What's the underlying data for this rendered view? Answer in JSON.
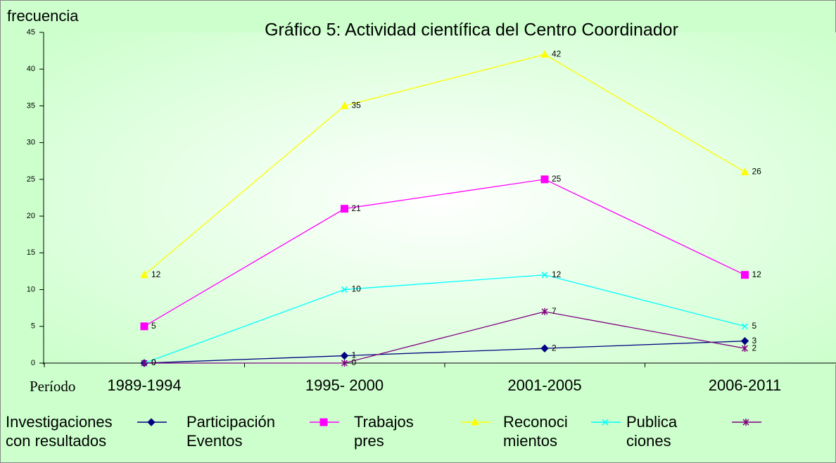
{
  "chart_data": {
    "type": "line",
    "title": "Gráfico 5: Actividad científica del Centro Coordinador",
    "y_label": "frecuencia",
    "x_label": "Período",
    "categories": [
      "1989-1994",
      "1995- 2000",
      "2001-2005",
      "2006-2011"
    ],
    "ylim": [
      0,
      45
    ],
    "yticks": [
      0,
      5,
      10,
      15,
      20,
      25,
      30,
      35,
      40,
      45
    ],
    "series": [
      {
        "name": "Investigaciones\ncon resultados",
        "color": "#000080",
        "marker": "diamond",
        "values": [
          0,
          1,
          2,
          3
        ]
      },
      {
        "name": "Participación\n Eventos",
        "color": "#ff00ff",
        "marker": "square",
        "values": [
          5,
          21,
          25,
          12
        ]
      },
      {
        "name": "Trabajos\n pres",
        "color": "#ffff00",
        "marker": "triangle",
        "values": [
          12,
          35,
          42,
          26
        ]
      },
      {
        "name": "Reconoci\nmientos",
        "color": "#00ffff",
        "marker": "x",
        "values": [
          0,
          10,
          12,
          5
        ]
      },
      {
        "name": "Publica\nciones",
        "color": "#800080",
        "marker": "star",
        "values": [
          0,
          0,
          7,
          2
        ]
      }
    ]
  }
}
